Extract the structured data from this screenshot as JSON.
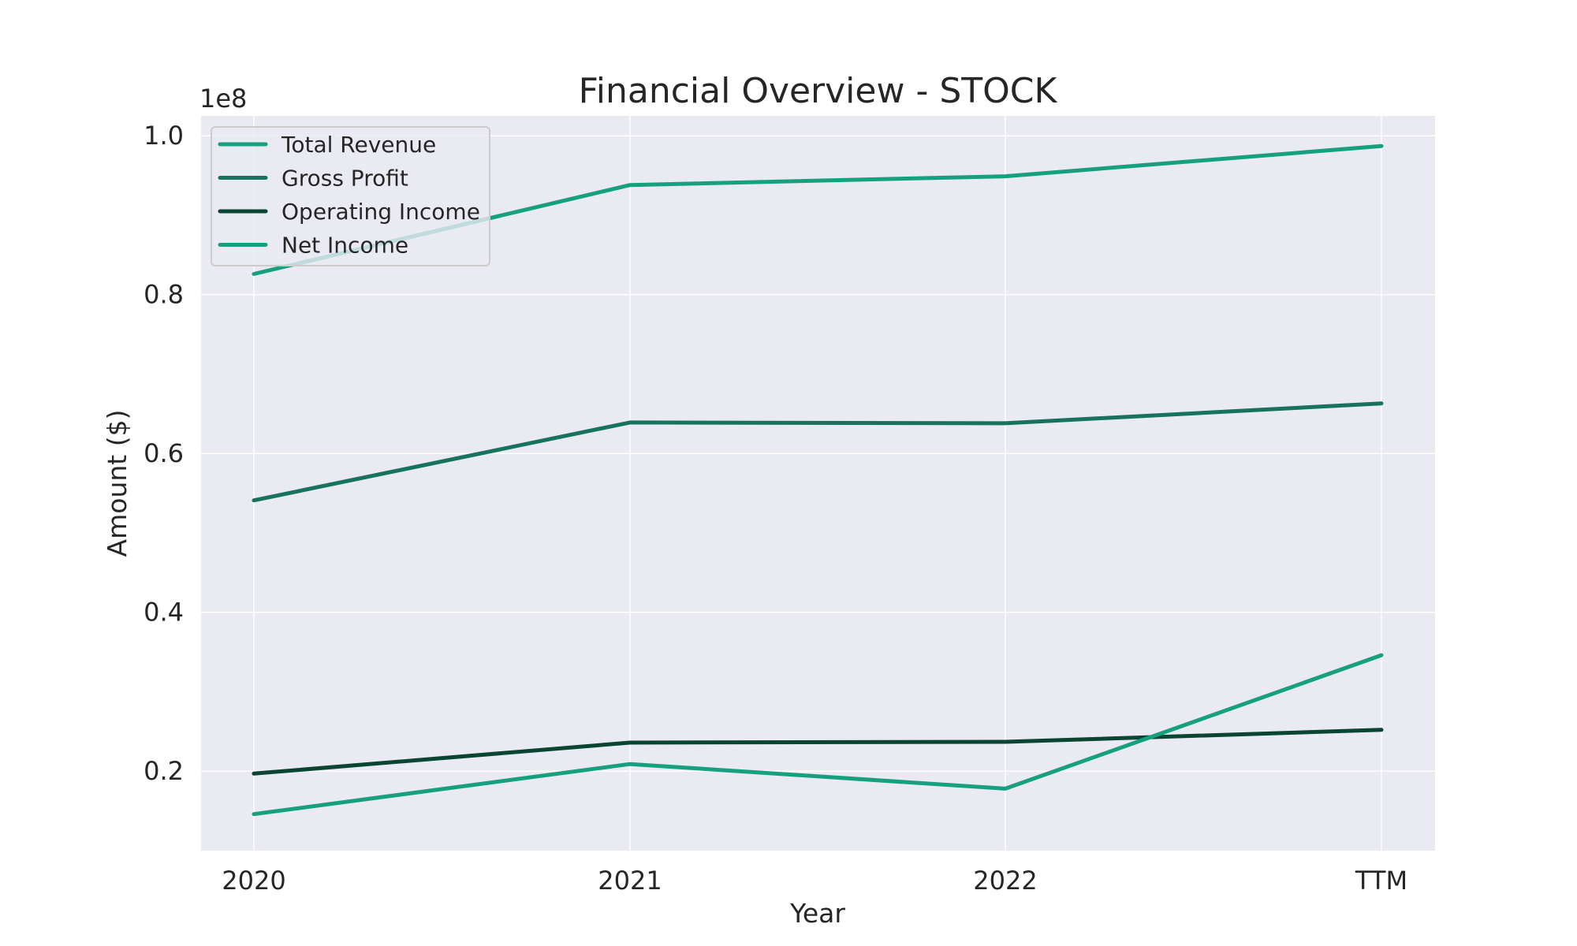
{
  "chart_data": {
    "type": "line",
    "title": "Financial Overview - STOCK",
    "xlabel": "Year",
    "ylabel": "Amount ($)",
    "y_offset_label": "1e8",
    "categories": [
      "2020",
      "2021",
      "2022",
      "TTM"
    ],
    "y_ticks": [
      0.2,
      0.4,
      0.6,
      0.8,
      1.0
    ],
    "y_tick_labels": [
      "0.2",
      "0.4",
      "0.6",
      "0.8",
      "1.0"
    ],
    "ylim": [
      0.1,
      1.025
    ],
    "grid": true,
    "legend_position": "upper-left",
    "series": [
      {
        "name": "Total Revenue",
        "color": "#17a07e",
        "values": [
          0.826,
          0.938,
          0.949,
          0.987
        ]
      },
      {
        "name": "Gross Profit",
        "color": "#17735e",
        "values": [
          0.541,
          0.639,
          0.638,
          0.663
        ]
      },
      {
        "name": "Operating Income",
        "color": "#0a4534",
        "values": [
          0.197,
          0.236,
          0.237,
          0.252
        ]
      },
      {
        "name": "Net Income",
        "color": "#17a07e",
        "values": [
          0.146,
          0.209,
          0.178,
          0.346
        ]
      }
    ]
  },
  "colors": {
    "plot_background": "#eaeaf2",
    "grid": "#ffffff",
    "text": "#262626"
  }
}
